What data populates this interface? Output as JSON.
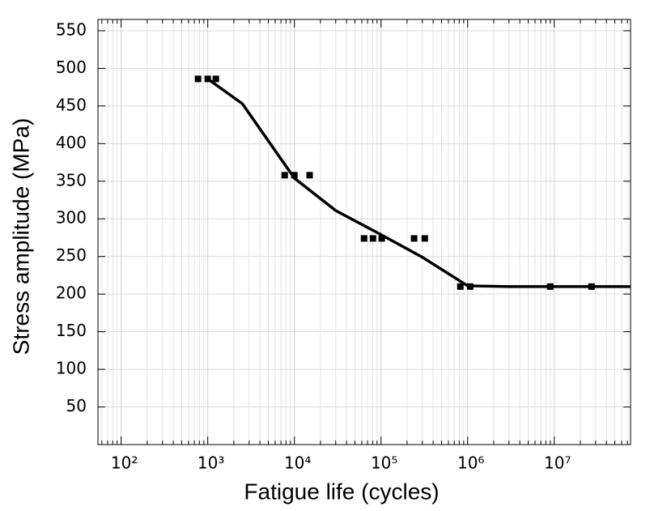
{
  "chart_data": {
    "type": "scatter",
    "x_label": "Fatigue life (cycles)",
    "y_label": "Stress amplitude (MPa)",
    "xscale": "log",
    "xlim": [
      54,
      76000000
    ],
    "ylim": [
      0,
      565
    ],
    "xticks": [
      {
        "value": 100,
        "label": "10²"
      },
      {
        "value": 1000,
        "label": "10³"
      },
      {
        "value": 10000,
        "label": "10⁴"
      },
      {
        "value": 100000,
        "label": "10⁵"
      },
      {
        "value": 1000000,
        "label": "10⁶"
      },
      {
        "value": 10000000,
        "label": "10⁷"
      }
    ],
    "yticks": [
      50,
      100,
      150,
      200,
      250,
      300,
      350,
      400,
      450,
      500,
      550
    ],
    "grid": true,
    "minor_grid": true,
    "series": [
      {
        "type": "scatter",
        "color": "#000000",
        "x": [
          773,
          1000,
          1240,
          7730,
          10000,
          15000,
          63700,
          80700,
          102000,
          241000,
          320000,
          824000,
          1070000,
          8980000,
          26900000
        ],
        "values": [
          486,
          486,
          486,
          358,
          358,
          358,
          274,
          274,
          274,
          274,
          274,
          210,
          210,
          210,
          210
        ]
      },
      {
        "type": "line",
        "color": "#000000",
        "x": [
          1000,
          2510,
          10000,
          30000,
          100000,
          300000,
          1000000,
          3000000,
          76000000
        ],
        "values": [
          486,
          453,
          354,
          311,
          279,
          249,
          211,
          210,
          210
        ]
      }
    ]
  }
}
